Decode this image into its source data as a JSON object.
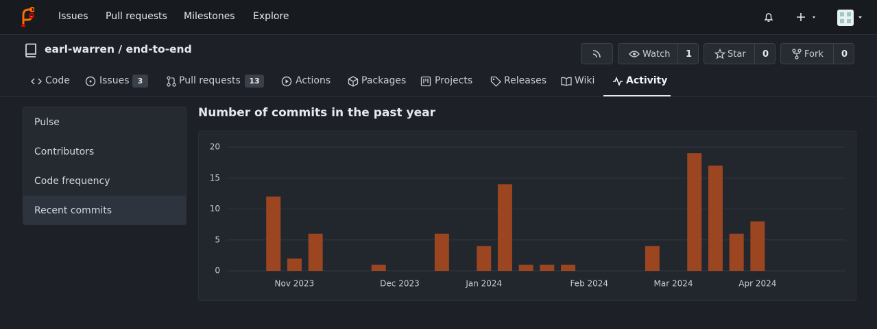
{
  "nav": {
    "items": [
      "Issues",
      "Pull requests",
      "Milestones",
      "Explore"
    ]
  },
  "repo": {
    "owner": "earl-warren",
    "separator": "/",
    "name": "end-to-end",
    "watch": {
      "label": "Watch",
      "count": 1
    },
    "star": {
      "label": "Star",
      "count": 0
    },
    "fork": {
      "label": "Fork",
      "count": 0
    }
  },
  "tabs": [
    {
      "label": "Code"
    },
    {
      "label": "Issues",
      "count": 3
    },
    {
      "label": "Pull requests",
      "count": 13
    },
    {
      "label": "Actions"
    },
    {
      "label": "Packages"
    },
    {
      "label": "Projects"
    },
    {
      "label": "Releases"
    },
    {
      "label": "Wiki"
    },
    {
      "label": "Activity"
    }
  ],
  "sidebar": [
    "Pulse",
    "Contributors",
    "Code frequency",
    "Recent commits"
  ],
  "chart_data": {
    "type": "bar",
    "title": "Number of commits in the past year",
    "categories": [
      null,
      null,
      null,
      "Nov 2023",
      null,
      null,
      null,
      null,
      "Dec 2023",
      null,
      null,
      null,
      "Jan 2024",
      null,
      null,
      null,
      null,
      "Feb 2024",
      null,
      null,
      null,
      "Mar 2024",
      null,
      null,
      null,
      "Apr 2024",
      null,
      null,
      null
    ],
    "values": [
      0,
      0,
      12,
      2,
      6,
      0,
      0,
      1,
      0,
      0,
      6,
      0,
      4,
      14,
      1,
      1,
      1,
      0,
      0,
      0,
      4,
      0,
      19,
      17,
      6,
      8,
      0,
      0,
      0
    ],
    "color": "#9c4521",
    "ylim": [
      0,
      20
    ],
    "yticks": [
      0,
      5,
      10,
      15,
      20
    ],
    "grid": true
  }
}
